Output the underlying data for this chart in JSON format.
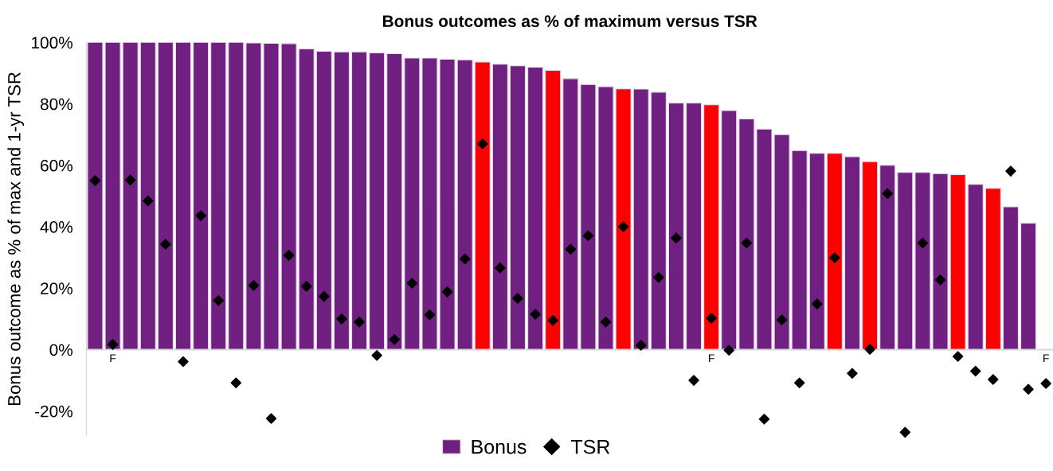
{
  "chart_data": {
    "type": "bar",
    "title": "Bonus outcomes as % of maximum versus TSR",
    "ylabel": "Bonus outcome as % of max and 1-yr TSR",
    "categories": [
      null,
      "F",
      null,
      null,
      null,
      null,
      null,
      null,
      null,
      null,
      null,
      null,
      null,
      null,
      null,
      null,
      null,
      null,
      null,
      null,
      null,
      null,
      null,
      null,
      null,
      null,
      null,
      null,
      null,
      null,
      null,
      null,
      null,
      null,
      null,
      "F",
      null,
      null,
      null,
      null,
      null,
      null,
      null,
      null,
      null,
      null,
      null,
      null,
      null,
      null,
      null,
      null,
      null,
      null,
      "F"
    ],
    "series": [
      {
        "name": "Bonus",
        "color": "#6f2080",
        "colors": [
          "#6f2080",
          "#6f2080",
          "#6f2080",
          "#6f2080",
          "#6f2080",
          "#6f2080",
          "#6f2080",
          "#6f2080",
          "#6f2080",
          "#6f2080",
          "#6f2080",
          "#6f2080",
          "#6f2080",
          "#6f2080",
          "#6f2080",
          "#6f2080",
          "#6f2080",
          "#6f2080",
          "#6f2080",
          "#6f2080",
          "#6f2080",
          "#6f2080",
          "#ff0000",
          "#6f2080",
          "#6f2080",
          "#6f2080",
          "#ff0000",
          "#6f2080",
          "#6f2080",
          "#6f2080",
          "#ff0000",
          "#6f2080",
          "#6f2080",
          "#6f2080",
          "#6f2080",
          "#ff0000",
          "#6f2080",
          "#6f2080",
          "#6f2080",
          "#6f2080",
          "#6f2080",
          "#6f2080",
          "#ff0000",
          "#6f2080",
          "#ff0000",
          "#6f2080",
          "#6f2080",
          "#6f2080",
          "#6f2080",
          "#ff0000",
          "#6f2080",
          "#ff0000",
          "#6f2080",
          "#6f2080",
          "#6f2080"
        ],
        "values": [
          100,
          100,
          100,
          100,
          100,
          100,
          100,
          100,
          100,
          99.8,
          99.7,
          99.6,
          97.9,
          97.1,
          96.9,
          96.9,
          96.6,
          96.3,
          94.9,
          94.9,
          94.5,
          94.3,
          93.6,
          92.9,
          92.4,
          91.9,
          90.9,
          88.2,
          86.3,
          85.6,
          84.9,
          84.8,
          83.8,
          80.3,
          80.3,
          79.7,
          77.8,
          75.1,
          71.8,
          70.0,
          64.8,
          63.9,
          63.9,
          62.8,
          61.2,
          60.0,
          57.7,
          57.7,
          57.3,
          57.0,
          53.8,
          52.5,
          46.5,
          41.2,
          null
        ]
      },
      {
        "name": "TSR",
        "type": "scatter",
        "color": "#000000",
        "marker": "diamond",
        "values": [
          55.0,
          1.7,
          55.2,
          48.4,
          34.3,
          -3.9,
          43.6,
          16.0,
          -10.8,
          20.9,
          -22.4,
          30.7,
          20.6,
          17.3,
          10.0,
          9.0,
          -1.9,
          3.3,
          21.6,
          11.3,
          18.8,
          29.5,
          67.0,
          26.6,
          16.7,
          11.5,
          9.5,
          32.7,
          37.1,
          9.0,
          40.0,
          1.4,
          23.5,
          36.3,
          -10.0,
          10.2,
          -0.2,
          34.7,
          -22.6,
          9.7,
          -10.8,
          14.9,
          29.9,
          -7.7,
          0.1,
          50.8,
          -26.9,
          34.7,
          22.7,
          -2.2,
          -7.0,
          -9.7,
          58.1,
          -12.9,
          -11.0
        ]
      }
    ],
    "ylim": [
      -28,
      100
    ],
    "yticks": [
      {
        "value": -20,
        "label": "-20%"
      },
      {
        "value": 0,
        "label": "0%"
      },
      {
        "value": 20,
        "label": "20%"
      },
      {
        "value": 40,
        "label": "40%"
      },
      {
        "value": 60,
        "label": "60%"
      },
      {
        "value": 80,
        "label": "80%"
      },
      {
        "value": 100,
        "label": "100%"
      }
    ],
    "grid": false,
    "legend": "bottom"
  }
}
